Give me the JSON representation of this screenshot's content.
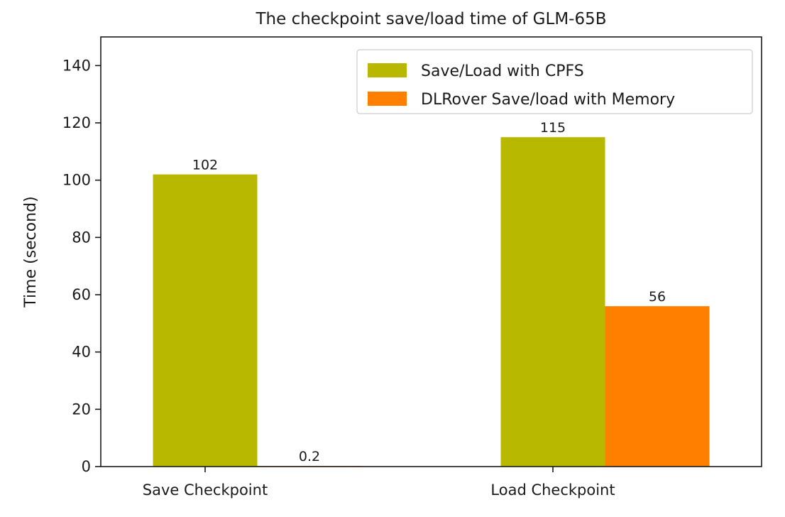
{
  "chart_data": {
    "type": "bar",
    "title": "The checkpoint save/load time of GLM-65B",
    "xlabel": "",
    "ylabel": "Time (second)",
    "categories": [
      "Save Checkpoint",
      "Load Checkpoint"
    ],
    "series": [
      {
        "name": "Save/Load with CPFS",
        "values": [
          102,
          115
        ],
        "labels": [
          "102",
          "115"
        ],
        "color": "#b8b800"
      },
      {
        "name": "DLRover Save/load with Memory",
        "values": [
          0.2,
          56
        ],
        "labels": [
          "0.2",
          "56"
        ],
        "color": "#ff8000"
      }
    ],
    "ylim": [
      0,
      150
    ],
    "yticks": [
      0,
      20,
      40,
      60,
      80,
      100,
      120,
      140
    ],
    "grid": false,
    "legend_position": "top-right"
  }
}
